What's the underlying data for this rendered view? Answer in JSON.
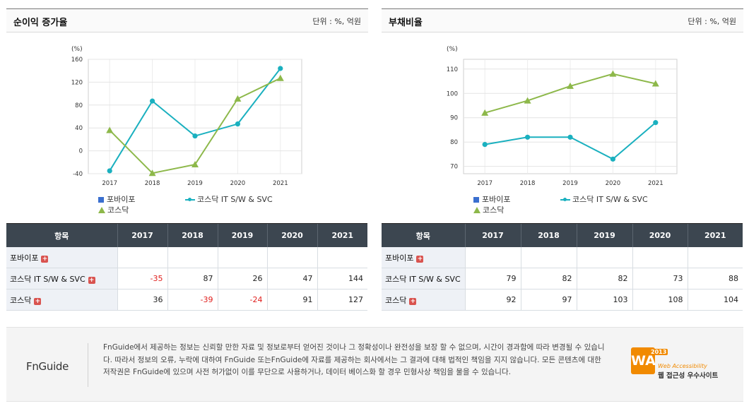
{
  "panels": [
    {
      "title": "순이익 증가율",
      "unit": "단위 : %, 억원",
      "legend": {
        "item1": "포바이포",
        "item2": "코스닥 IT S/W & SVC",
        "item3": "코스닥"
      },
      "table": {
        "header": "항목",
        "years": [
          "2017",
          "2018",
          "2019",
          "2020",
          "2021"
        ],
        "rows": [
          {
            "label": "포바이포",
            "values": [
              "",
              "",
              "",
              "",
              ""
            ]
          },
          {
            "label": "코스닥 IT S/W & SVC",
            "values": [
              "-35",
              "87",
              "26",
              "47",
              "144"
            ]
          },
          {
            "label": "코스닥",
            "values": [
              "36",
              "-39",
              "-24",
              "91",
              "127"
            ]
          }
        ]
      }
    },
    {
      "title": "부채비율",
      "unit": "단위 : %, 억원",
      "legend": {
        "item1": "포바이포",
        "item2": "코스닥 IT S/W & SVC",
        "item3": "코스닥"
      },
      "table": {
        "header": "항목",
        "years": [
          "2017",
          "2018",
          "2019",
          "2020",
          "2021"
        ],
        "rows": [
          {
            "label": "포바이포",
            "values": [
              "",
              "",
              "",
              "",
              ""
            ]
          },
          {
            "label": "코스닥 IT S/W & SVC",
            "values": [
              "79",
              "82",
              "82",
              "73",
              "88"
            ]
          },
          {
            "label": "코스닥",
            "values": [
              "92",
              "97",
              "103",
              "108",
              "104"
            ]
          }
        ]
      }
    }
  ],
  "chart_data": [
    {
      "type": "line",
      "title": "순이익 증가율",
      "unit_label": "(%)",
      "x": [
        "2017",
        "2018",
        "2019",
        "2020",
        "2021"
      ],
      "ylim": [
        -40,
        160
      ],
      "yticks": [
        -40,
        0,
        40,
        80,
        120,
        160
      ],
      "series": [
        {
          "name": "포바이포",
          "values": [
            null,
            null,
            null,
            null,
            null
          ],
          "color": "#3a6fcf",
          "marker": "square"
        },
        {
          "name": "코스닥 IT S/W & SVC",
          "values": [
            -35,
            87,
            26,
            47,
            144
          ],
          "color": "#1ab0bf",
          "marker": "circle"
        },
        {
          "name": "코스닥",
          "values": [
            36,
            -39,
            -24,
            91,
            127
          ],
          "color": "#8db84a",
          "marker": "triangle"
        }
      ],
      "grid": true,
      "legend_position": "bottom-left"
    },
    {
      "type": "line",
      "title": "부채비율",
      "unit_label": "(%)",
      "x": [
        "2017",
        "2018",
        "2019",
        "2020",
        "2021"
      ],
      "ylim": [
        67,
        114
      ],
      "yticks": [
        70,
        80,
        90,
        100,
        110
      ],
      "series": [
        {
          "name": "포바이포",
          "values": [
            null,
            null,
            null,
            null,
            null
          ],
          "color": "#3a6fcf",
          "marker": "square"
        },
        {
          "name": "코스닥 IT S/W & SVC",
          "values": [
            79,
            82,
            82,
            73,
            88
          ],
          "color": "#1ab0bf",
          "marker": "circle"
        },
        {
          "name": "코스닥",
          "values": [
            92,
            97,
            103,
            108,
            104
          ],
          "color": "#8db84a",
          "marker": "triangle"
        }
      ],
      "grid": true,
      "legend_position": "bottom-left"
    }
  ],
  "footer": {
    "logo": "FnGuide",
    "disclaimer": "FnGuide에서 제공하는 정보는 신뢰할 만한 자료 및 정보로부터 얻어진 것이나 그 정확성이나 완전성을 보장 할 수 없으며, 시간이 경과함에 따라 변경될 수 있습니다. 따라서 정보의 오류, 누락에 대하여 FnGuide 또는FnGuide에 자료를 제공하는 회사에서는 그 결과에 대해 법적인 책임을 지지 않습니다. 모든 콘텐츠에 대한 저작권은 FnGuide에 있으며 사전 허가없이 이를 무단으로 사용하거나, 데이터 베이스화 할 경우 민형사상 책임을 물을 수 있습니다.",
    "badge_year": "2013",
    "badge_sub": "Web Accessibility",
    "badge_name": "웹 접근성 우수사이트",
    "badge_logo": "WA"
  }
}
